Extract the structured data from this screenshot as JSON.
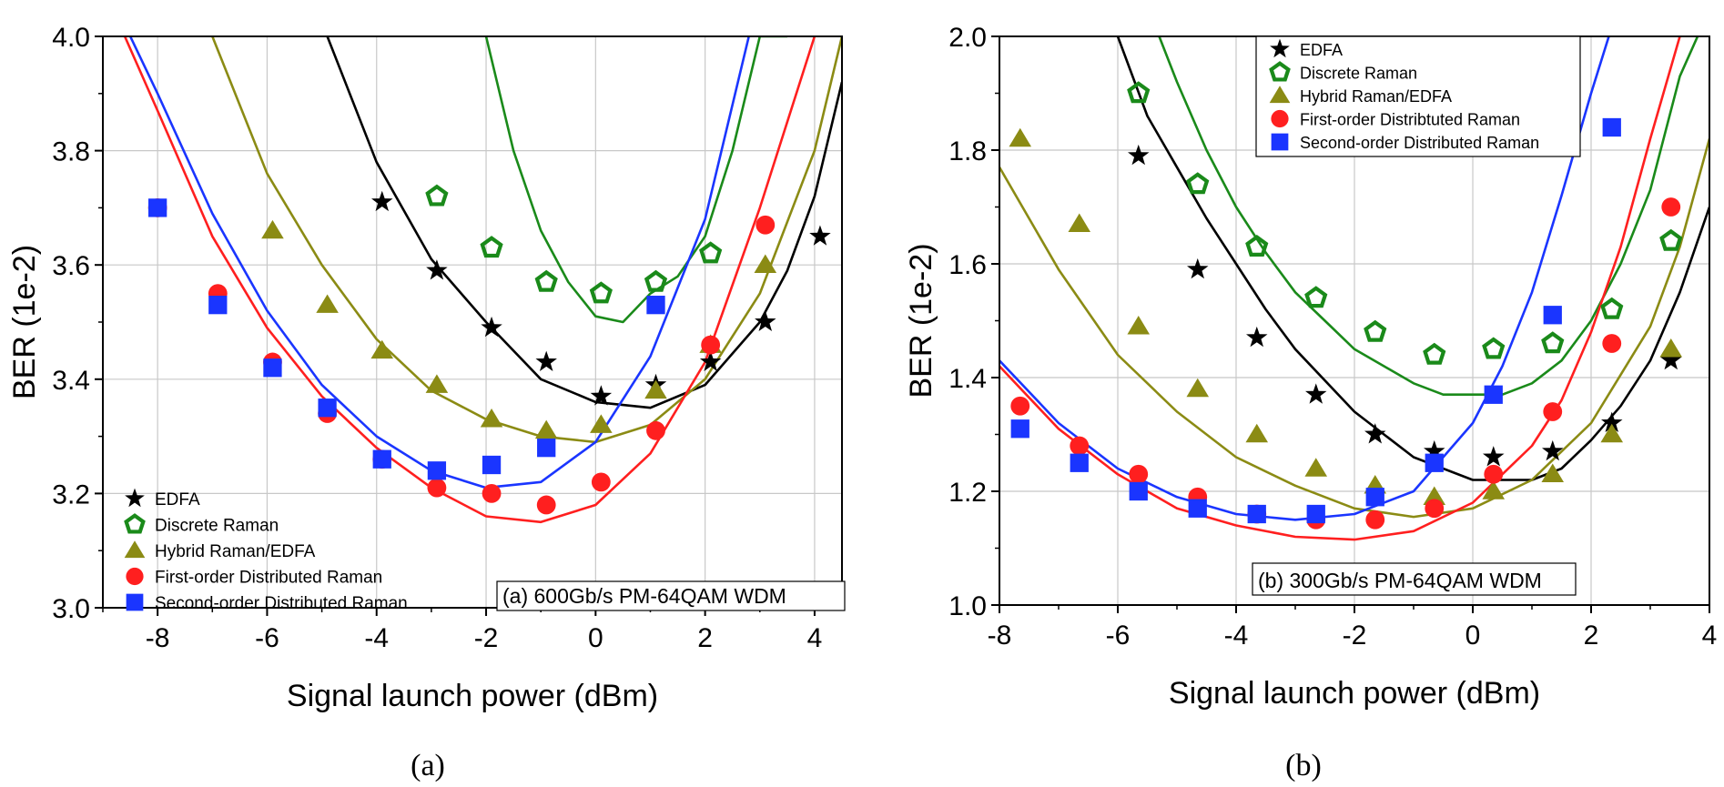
{
  "colors": {
    "edfa": "#000000",
    "discrete": "#1a8a1a",
    "hybrid": "#8b8b14",
    "first": "#ff1f1f",
    "second": "#1a35ff",
    "grid": "#c8c8c8"
  },
  "chart_data": [
    {
      "type": "scatter",
      "panel_label": "(a)",
      "annotation": "(a) 600Gb/s PM-64QAM WDM",
      "xlabel": "Signal launch power (dBm)",
      "ylabel": "BER (1e-2)",
      "xlim": [
        -9,
        4.5
      ],
      "ylim": [
        3.0,
        4.0
      ],
      "xticks": [
        -8,
        -6,
        -4,
        -2,
        0,
        2,
        4
      ],
      "yticks": [
        3.0,
        3.2,
        3.4,
        3.6,
        3.8,
        4.0
      ],
      "ytick_labels": [
        "3.0",
        "3.2",
        "3.4",
        "3.6",
        "3.8",
        "4.0"
      ],
      "grid": true,
      "legend_position": "bottom-left",
      "series": [
        {
          "name": "EDFA",
          "key": "edfa",
          "marker": "star",
          "x": [
            -3.9,
            -2.9,
            -1.9,
            -0.9,
            0.1,
            1.1,
            2.1,
            3.1,
            4.1
          ],
          "y": [
            3.71,
            3.59,
            3.49,
            3.43,
            3.37,
            3.39,
            3.43,
            3.5,
            3.65
          ],
          "fit_x": [
            -4.9,
            -4,
            -3,
            -2,
            -1,
            0,
            1,
            2,
            3,
            3.5,
            4,
            4.5
          ],
          "fit_y": [
            4.0,
            3.78,
            3.61,
            3.5,
            3.4,
            3.36,
            3.35,
            3.39,
            3.5,
            3.59,
            3.72,
            3.92
          ]
        },
        {
          "name": "Discrete Raman",
          "key": "discrete",
          "marker": "pentagon",
          "x": [
            -2.9,
            -1.9,
            -0.9,
            0.1,
            1.1,
            2.1
          ],
          "y": [
            3.72,
            3.63,
            3.57,
            3.55,
            3.57,
            3.62
          ],
          "fit_x": [
            -2.0,
            -1.5,
            -1,
            -0.5,
            0,
            0.5,
            1,
            1.5,
            2,
            2.5,
            3,
            3.5
          ],
          "fit_y": [
            4.0,
            3.8,
            3.66,
            3.57,
            3.51,
            3.5,
            3.55,
            3.58,
            3.65,
            3.8,
            4.0,
            4.0
          ]
        },
        {
          "name": "Hybrid Raman/EDFA",
          "key": "hybrid",
          "marker": "triangle",
          "x": [
            -5.9,
            -4.9,
            -3.9,
            -2.9,
            -1.9,
            -0.9,
            0.1,
            1.1,
            2.1,
            3.1
          ],
          "y": [
            3.66,
            3.53,
            3.45,
            3.39,
            3.33,
            3.31,
            3.32,
            3.38,
            3.46,
            3.6
          ],
          "fit_x": [
            -7.0,
            -6,
            -5,
            -4,
            -3,
            -2,
            -1,
            0,
            1,
            2,
            3,
            4,
            4.5
          ],
          "fit_y": [
            4.0,
            3.76,
            3.6,
            3.47,
            3.38,
            3.33,
            3.3,
            3.29,
            3.32,
            3.4,
            3.55,
            3.8,
            4.0
          ]
        },
        {
          "name": "First-order Distributed Raman",
          "key": "first",
          "marker": "circle",
          "x": [
            -8.0,
            -6.9,
            -5.9,
            -4.9,
            -3.9,
            -2.9,
            -1.9,
            -0.9,
            0.1,
            1.1,
            2.1,
            3.1
          ],
          "y": [
            3.7,
            3.55,
            3.43,
            3.34,
            3.26,
            3.21,
            3.2,
            3.18,
            3.22,
            3.31,
            3.46,
            3.67
          ],
          "fit_x": [
            -8.6,
            -8,
            -7,
            -6,
            -5,
            -4,
            -3,
            -2,
            -1,
            0,
            1,
            2,
            3,
            4
          ],
          "fit_y": [
            4.0,
            3.87,
            3.65,
            3.49,
            3.37,
            3.28,
            3.21,
            3.16,
            3.15,
            3.18,
            3.27,
            3.43,
            3.7,
            4.0
          ]
        },
        {
          "name": "Second-order Distributed Raman",
          "key": "second",
          "marker": "square",
          "x": [
            -8.0,
            -6.9,
            -5.9,
            -4.9,
            -3.9,
            -2.9,
            -1.9,
            -0.9,
            1.1
          ],
          "y": [
            3.7,
            3.53,
            3.42,
            3.35,
            3.26,
            3.24,
            3.25,
            3.28,
            3.53
          ],
          "fit_x": [
            -8.5,
            -8,
            -7,
            -6,
            -5,
            -4,
            -3,
            -2,
            -1,
            0,
            1,
            2,
            2.8
          ],
          "fit_y": [
            4.0,
            3.9,
            3.69,
            3.52,
            3.39,
            3.3,
            3.24,
            3.21,
            3.22,
            3.29,
            3.44,
            3.68,
            4.0
          ]
        }
      ]
    },
    {
      "type": "scatter",
      "panel_label": "(b)",
      "annotation": "(b) 300Gb/s PM-64QAM WDM",
      "xlabel": "Signal launch power (dBm)",
      "ylabel": "BER (1e-2)",
      "xlim": [
        -8,
        4
      ],
      "ylim": [
        1.0,
        2.0
      ],
      "xticks": [
        -8,
        -6,
        -4,
        -2,
        0,
        2,
        4
      ],
      "yticks": [
        1.0,
        1.2,
        1.4,
        1.6,
        1.8,
        2.0
      ],
      "ytick_labels": [
        "1.0",
        "1.2",
        "1.4",
        "1.6",
        "1.8",
        "2.0"
      ],
      "grid": true,
      "legend_position": "top-right",
      "series": [
        {
          "name": "EDFA",
          "key": "edfa",
          "marker": "star",
          "x": [
            -5.65,
            -4.65,
            -3.65,
            -2.65,
            -1.65,
            -0.65,
            0.35,
            1.35,
            2.35,
            3.35
          ],
          "y": [
            1.79,
            1.59,
            1.47,
            1.37,
            1.3,
            1.27,
            1.26,
            1.27,
            1.32,
            1.43
          ],
          "fit_x": [
            -6.0,
            -5.5,
            -5,
            -4.5,
            -4,
            -3.5,
            -3,
            -2,
            -1,
            0,
            0.5,
            1,
            1.5,
            2,
            2.5,
            3,
            3.5,
            4
          ],
          "fit_y": [
            2.0,
            1.86,
            1.77,
            1.68,
            1.6,
            1.52,
            1.45,
            1.34,
            1.26,
            1.22,
            1.22,
            1.22,
            1.24,
            1.29,
            1.35,
            1.43,
            1.55,
            1.7
          ]
        },
        {
          "name": "Discrete Raman",
          "key": "discrete",
          "marker": "pentagon",
          "x": [
            -5.65,
            -4.65,
            -3.65,
            -2.65,
            -1.65,
            -0.65,
            0.35,
            1.35,
            2.35,
            3.35
          ],
          "y": [
            1.9,
            1.74,
            1.63,
            1.54,
            1.48,
            1.44,
            1.45,
            1.46,
            1.52,
            1.64
          ],
          "fit_x": [
            -5.3,
            -5,
            -4.5,
            -4,
            -3.5,
            -3,
            -2.5,
            -2,
            -1.5,
            -1,
            -0.5,
            0,
            0.5,
            1,
            1.5,
            2,
            2.5,
            3,
            3.5,
            3.8
          ],
          "fit_y": [
            2.0,
            1.92,
            1.8,
            1.7,
            1.62,
            1.55,
            1.5,
            1.45,
            1.42,
            1.39,
            1.37,
            1.37,
            1.37,
            1.39,
            1.43,
            1.5,
            1.6,
            1.73,
            1.93,
            2.0
          ]
        },
        {
          "name": "Hybrid Raman/EDFA",
          "key": "hybrid",
          "marker": "triangle",
          "x": [
            -7.65,
            -6.65,
            -5.65,
            -4.65,
            -3.65,
            -2.65,
            -1.65,
            -0.65,
            0.35,
            1.35,
            2.35,
            3.35
          ],
          "y": [
            1.82,
            1.67,
            1.49,
            1.38,
            1.3,
            1.24,
            1.21,
            1.19,
            1.2,
            1.23,
            1.3,
            1.45
          ],
          "fit_x": [
            -8.0,
            -7,
            -6,
            -5,
            -4,
            -3,
            -2,
            -1,
            0,
            1,
            2,
            3,
            3.5,
            4
          ],
          "fit_y": [
            1.77,
            1.59,
            1.44,
            1.34,
            1.26,
            1.21,
            1.17,
            1.155,
            1.17,
            1.22,
            1.32,
            1.49,
            1.63,
            1.82
          ]
        },
        {
          "name": "First-order Distribtuted Raman",
          "key": "first",
          "marker": "circle",
          "x": [
            -7.65,
            -6.65,
            -5.65,
            -4.65,
            -3.65,
            -2.65,
            -1.65,
            -0.65,
            0.35,
            1.35,
            2.35,
            3.35
          ],
          "y": [
            1.35,
            1.28,
            1.23,
            1.19,
            1.16,
            1.15,
            1.15,
            1.17,
            1.23,
            1.34,
            1.46,
            1.7
          ],
          "fit_x": [
            -8.0,
            -7,
            -6,
            -5,
            -4,
            -3,
            -2,
            -1,
            0,
            1,
            1.5,
            2,
            2.5,
            3,
            3.5
          ],
          "fit_y": [
            1.42,
            1.31,
            1.23,
            1.17,
            1.14,
            1.12,
            1.115,
            1.13,
            1.18,
            1.28,
            1.36,
            1.48,
            1.63,
            1.82,
            2.0
          ]
        },
        {
          "name": "Second-order Distributed Raman",
          "key": "second",
          "marker": "square",
          "x": [
            -7.65,
            -6.65,
            -5.65,
            -4.65,
            -3.65,
            -2.65,
            -1.65,
            -0.65,
            0.35,
            1.35,
            2.35
          ],
          "y": [
            1.31,
            1.25,
            1.2,
            1.17,
            1.16,
            1.16,
            1.19,
            1.25,
            1.37,
            1.51,
            1.84
          ],
          "fit_x": [
            -8.0,
            -7,
            -6,
            -5,
            -4,
            -3,
            -2,
            -1,
            0,
            0.5,
            1,
            1.5,
            2,
            2.3
          ],
          "fit_y": [
            1.43,
            1.32,
            1.24,
            1.19,
            1.16,
            1.15,
            1.16,
            1.2,
            1.32,
            1.42,
            1.55,
            1.72,
            1.9,
            2.0
          ]
        }
      ]
    }
  ]
}
